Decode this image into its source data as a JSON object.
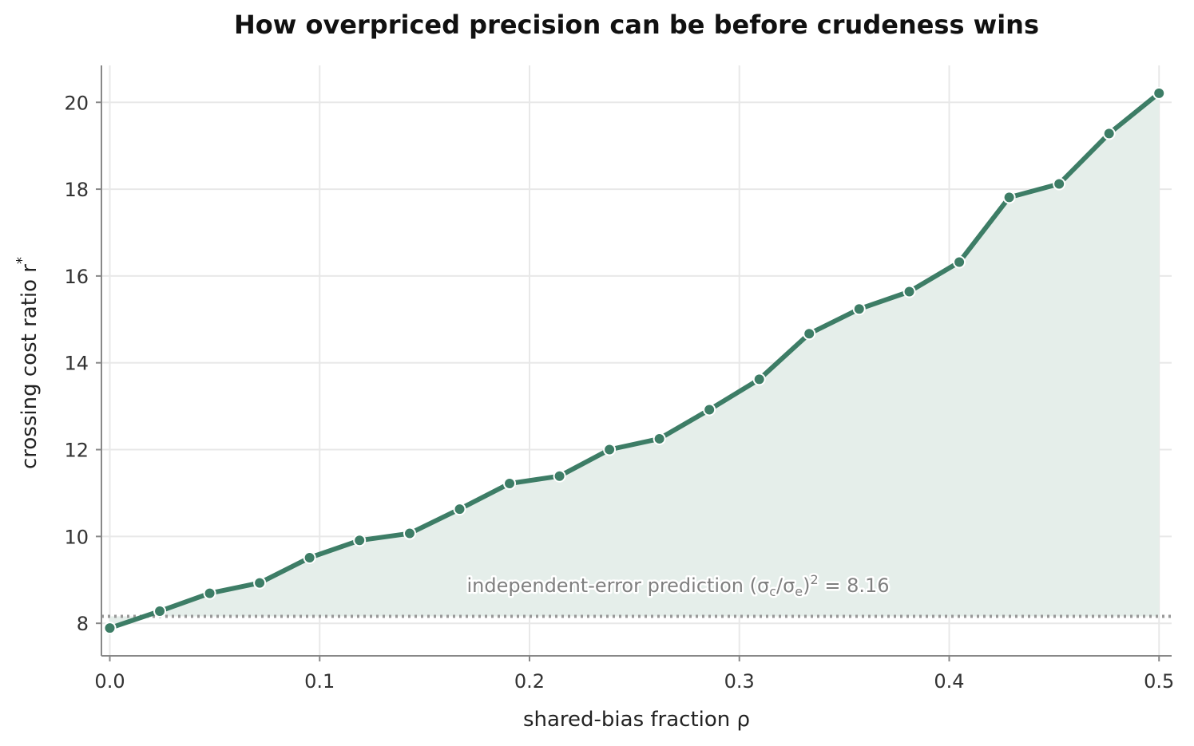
{
  "chart_data": {
    "type": "line",
    "title": "How overpriced precision can be before crudeness wins",
    "xlabel": "shared-bias fraction   ρ",
    "ylabel_main": "crossing cost ratio   r",
    "ylabel_sup": "*",
    "xlim": [
      -0.004,
      0.506
    ],
    "ylim": [
      7.25,
      20.85
    ],
    "xticks": [
      0.0,
      0.1,
      0.2,
      0.3,
      0.4,
      0.5
    ],
    "xtick_labels": [
      "0.0",
      "0.1",
      "0.2",
      "0.3",
      "0.4",
      "0.5"
    ],
    "yticks": [
      8,
      10,
      12,
      14,
      16,
      18,
      20
    ],
    "ytick_labels": [
      "8",
      "10",
      "12",
      "14",
      "16",
      "18",
      "20"
    ],
    "grid": true,
    "area_fill": true,
    "series": [
      {
        "x": [
          0.0,
          0.0238,
          0.0476,
          0.0714,
          0.0952,
          0.119,
          0.1429,
          0.1667,
          0.1905,
          0.2143,
          0.2381,
          0.2619,
          0.2857,
          0.3095,
          0.3333,
          0.3571,
          0.381,
          0.4048,
          0.4286,
          0.4524,
          0.4762,
          0.5
        ],
        "values": [
          7.89,
          8.28,
          8.69,
          8.93,
          9.51,
          9.91,
          10.07,
          10.63,
          11.22,
          11.39,
          12.0,
          12.25,
          12.92,
          13.62,
          14.67,
          15.24,
          15.64,
          16.32,
          17.81,
          18.12,
          19.28,
          20.21
        ]
      }
    ],
    "reference_line": {
      "y": 8.16,
      "style": "dotted",
      "label": {
        "prefix": "independent-error prediction  (σ",
        "sub1": "c",
        "mid": "/σ",
        "sub2": "e",
        "close": ")",
        "sup": "2",
        "suffix": " = 8.16"
      }
    },
    "colors": {
      "line": "#3d7d66",
      "fill": "#e5eeea",
      "marker_edge": "#ffffff",
      "grid": "#e8e8e8",
      "spine": "#888888",
      "reference": "#999999"
    }
  }
}
